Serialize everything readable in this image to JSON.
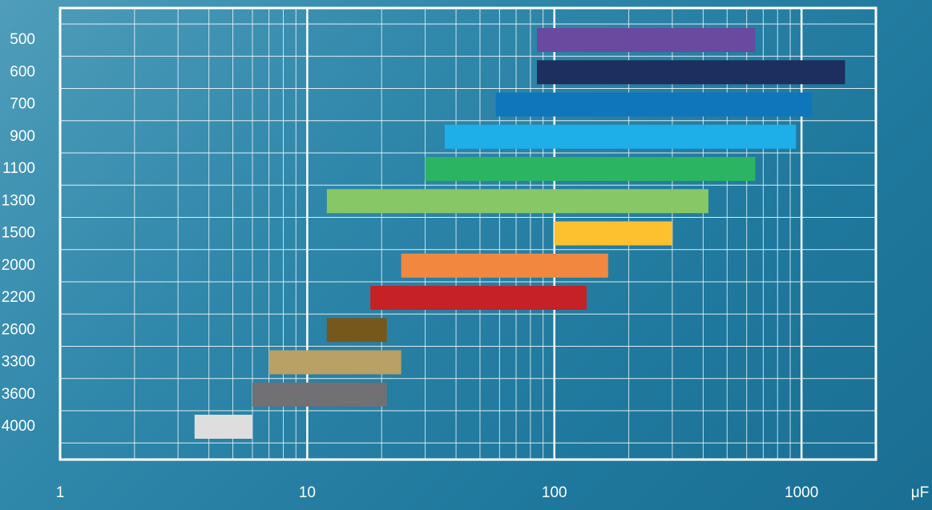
{
  "chart_data": {
    "type": "range_bar",
    "orientation": "horizontal",
    "categories": [
      "500",
      "600",
      "700",
      "900",
      "1100",
      "1300",
      "1500",
      "2000",
      "2200",
      "2600",
      "3300",
      "3600",
      "4000"
    ],
    "low": [
      85,
      85,
      58,
      36,
      30,
      12,
      100,
      24,
      18,
      12,
      7,
      6,
      3.5
    ],
    "high": [
      650,
      1500,
      1100,
      950,
      650,
      420,
      300,
      165,
      135,
      21,
      24,
      21,
      6
    ],
    "colors": [
      "#6a4a9f",
      "#1c2f5e",
      "#0f76bc",
      "#1eaee8",
      "#2bb462",
      "#88c765",
      "#fdc02e",
      "#f28840",
      "#c52127",
      "#76581d",
      "#b9a064",
      "#717073",
      "#dedede"
    ],
    "x_label": "μF",
    "xlim": [
      1,
      2000
    ],
    "xticks": [
      1,
      10,
      100,
      1000
    ],
    "minor_xticks": [
      2,
      3,
      4,
      5,
      6,
      7,
      8,
      9,
      20,
      30,
      40,
      50,
      60,
      70,
      80,
      90,
      200,
      300,
      400,
      500,
      600,
      700,
      800,
      900
    ],
    "x_log": true,
    "grid": true
  }
}
